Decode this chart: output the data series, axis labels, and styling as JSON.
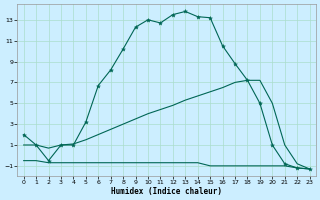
{
  "xlabel": "Humidex (Indice chaleur)",
  "bg_color": "#cceeff",
  "grid_color": "#aaddcc",
  "line_color": "#006655",
  "xlim": [
    -0.5,
    23.5
  ],
  "ylim": [
    -2.0,
    14.5
  ],
  "xticks": [
    0,
    1,
    2,
    3,
    4,
    5,
    6,
    7,
    8,
    9,
    10,
    11,
    12,
    13,
    14,
    15,
    16,
    17,
    18,
    19,
    20,
    21,
    22,
    23
  ],
  "yticks": [
    -1,
    1,
    3,
    5,
    7,
    9,
    11,
    13
  ],
  "s1x": [
    0,
    1,
    2,
    3,
    4,
    5,
    6,
    7,
    8,
    9,
    10,
    11,
    12,
    13,
    14,
    15,
    16,
    17,
    18,
    19,
    20,
    21,
    22,
    23
  ],
  "s1y": [
    2.0,
    1.0,
    -0.5,
    1.0,
    1.0,
    3.2,
    6.7,
    8.2,
    10.2,
    12.3,
    13.0,
    12.7,
    13.5,
    13.8,
    13.3,
    13.2,
    10.5,
    8.8,
    7.2,
    5.0,
    1.0,
    -0.8,
    -1.2,
    -1.3
  ],
  "s2x": [
    0,
    1,
    2,
    3,
    4,
    5,
    6,
    7,
    8,
    9,
    10,
    11,
    12,
    13,
    14,
    15,
    16,
    17,
    18,
    19,
    20,
    21,
    22,
    23
  ],
  "s2y": [
    1.0,
    1.0,
    0.7,
    1.0,
    1.1,
    1.5,
    2.0,
    2.5,
    3.0,
    3.5,
    4.0,
    4.4,
    4.8,
    5.3,
    5.7,
    6.1,
    6.5,
    7.0,
    7.2,
    7.2,
    5.0,
    1.0,
    -0.8,
    -1.3
  ],
  "s3x": [
    0,
    1,
    2,
    3,
    4,
    5,
    6,
    7,
    8,
    9,
    10,
    11,
    12,
    13,
    14,
    15,
    16,
    17,
    18,
    19,
    20,
    21,
    22,
    23
  ],
  "s3y": [
    -0.5,
    -0.5,
    -0.7,
    -0.7,
    -0.7,
    -0.7,
    -0.7,
    -0.7,
    -0.7,
    -0.7,
    -0.7,
    -0.7,
    -0.7,
    -0.7,
    -0.7,
    -1.0,
    -1.0,
    -1.0,
    -1.0,
    -1.0,
    -1.0,
    -1.0,
    -1.2,
    -1.3
  ]
}
